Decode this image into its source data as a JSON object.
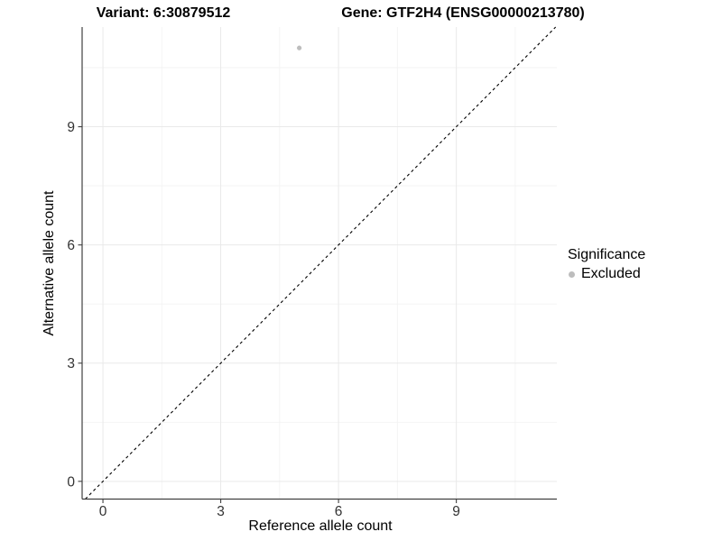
{
  "legend": {
    "title": "Significance",
    "items": [
      {
        "label": "Excluded",
        "color": "#bdbdbd"
      }
    ]
  },
  "colors": {
    "background": "#ffffff",
    "grid_major": "#e9e9e9",
    "grid_minor": "#f3f3f3",
    "axis_line": "#404040",
    "tick_label": "#333333",
    "identity_line": "#000000",
    "point": "#bdbdbd"
  },
  "chart_data": {
    "type": "scatter",
    "titles": [
      "Variant: 6:30879512",
      "Gene: GTF2H4 (ENSG00000213780)"
    ],
    "xlabel": "Reference allele count",
    "ylabel": "Alternative allele count",
    "points": [
      {
        "x": 5,
        "y": 11,
        "series": "Excluded",
        "color": "#bdbdbd"
      }
    ],
    "identity_line": {
      "equation": "y = x",
      "style": "dashed",
      "color": "#000000"
    },
    "x_ticks": [
      0,
      3,
      6,
      9
    ],
    "y_ticks": [
      0,
      3,
      6,
      9
    ],
    "x_minor_ticks": [
      1.5,
      4.5,
      7.5,
      10.5
    ],
    "y_minor_ticks": [
      1.5,
      4.5,
      7.5,
      10.5
    ],
    "xlim": [
      -0.53,
      11.56
    ],
    "ylim": [
      -0.45,
      11.53
    ],
    "grid": true,
    "legend_position": "right"
  }
}
